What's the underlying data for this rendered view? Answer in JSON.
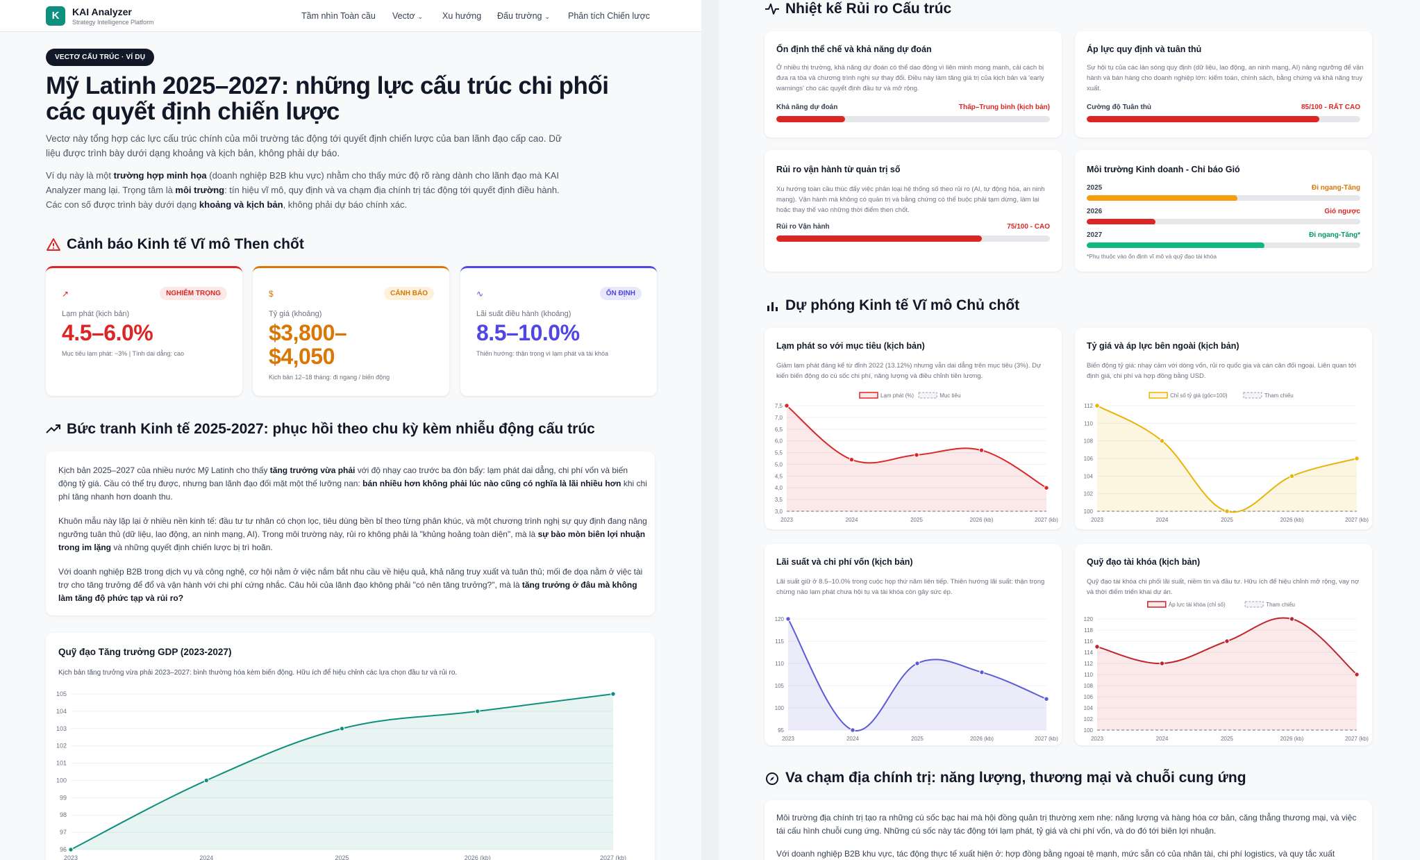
{
  "left": {
    "nav": {
      "logo_letter": "K",
      "brand": "KAI Analyzer",
      "tagline": "Strategy Intelligence Platform",
      "items": [
        {
          "label": "Tầm nhìn Toàn cầu",
          "has_dropdown": false
        },
        {
          "label": "Vectơ",
          "has_dropdown": true
        },
        {
          "label": "Xu hướng",
          "has_dropdown": false
        },
        {
          "label": "Đấu trường",
          "has_dropdown": true
        },
        {
          "label": "Phân tích Chiến lược",
          "has_dropdown": false
        }
      ]
    },
    "pill": "VECTƠ CẤU TRÚC · VÍ DỤ",
    "title": "Mỹ Latinh 2025–2027: những lực cấu trúc chi phối các quyết định chiến lược",
    "lead": "Vectơ này tổng hợp các lực cấu trúc chính của môi trường tác động tới quyết định chiến lược của ban lãnh đạo cấp cao. Dữ liệu được trình bày dưới dạng khoảng và kịch bản, không phải dự báo.",
    "lead2": {
      "p1": "Ví dụ này là một ",
      "b1": "trường hợp minh họa",
      "p2": " (doanh nghiệp B2B khu vực) nhằm cho thấy mức độ rõ ràng dành cho lãnh đạo mà KAI Analyzer mang lại. Trọng tâm là ",
      "b2": "môi trường",
      "p3": ": tín hiệu vĩ mô, quy định và va chạm địa chính trị tác động tới quyết định điều hành. Các con số được trình bày dưới dạng ",
      "b3": "khoảng và kịch bản",
      "p4": ", không phải dự báo chính xác."
    },
    "alerts_title": "Cảnh báo Kinh tế Vĩ mô Then chốt",
    "kpis": [
      {
        "icon": "trend-up-icon",
        "badge": "NGHIÊM TRỌNG",
        "label": "Lạm phát (kịch bản)",
        "value": "4.5–6.0%",
        "note": "Mục tiêu lạm phát: ~3% | Tính dai dẳng: cao",
        "color": "#dc2626",
        "badge_bg": "#fde8e8"
      },
      {
        "icon": "dollar-icon",
        "badge": "CẢNH BÁO",
        "label": "Tỷ giá (khoảng)",
        "value": "$3,800–$4,050",
        "note": "Kịch bản 12–18 tháng: đi ngang / biến động",
        "color": "#d97706",
        "badge_bg": "#fdf1dc"
      },
      {
        "icon": "pulse-icon",
        "badge": "ỔN ĐỊNH",
        "label": "Lãi suất điều hành (khoảng)",
        "value": "8.5–10.0%",
        "note": "Thiên hướng: thận trọng vì lạm phát và tài khóa",
        "color": "#4f46e5",
        "badge_bg": "#e8e7fb"
      }
    ],
    "overview": {
      "title": "Bức tranh Kinh tế 2025-2027: phục hồi theo chu kỳ kèm nhiễu động cấu trúc",
      "p1": [
        {
          "t": "Kịch bản 2025–2027 của nhiều nước Mỹ Latinh cho thấy ",
          "b": false
        },
        {
          "t": "tăng trưởng vừa phải",
          "b": true
        },
        {
          "t": " với độ nhạy cao trước ba đòn bẩy: lạm phát dai dẳng, chi phí vốn và biến động tỷ giá. Cầu có thể trụ được, nhưng ban lãnh đạo đối mặt một thế lưỡng nan: ",
          "b": false
        },
        {
          "t": "bán nhiều hơn không phải lúc nào cũng có nghĩa là lãi nhiều hơn",
          "b": true
        },
        {
          "t": " khi chi phí tăng nhanh hơn doanh thu.",
          "b": false
        }
      ],
      "p2": [
        {
          "t": "Khuôn mẫu này lặp lại ở nhiều nền kinh tế: đầu tư tư nhân có chọn lọc, tiêu dùng bền bỉ theo từng phân khúc, và một chương trình nghị sự quy định đang nâng ngưỡng tuân thủ (dữ liệu, lao động, an ninh mạng, AI). Trong môi trường này, rủi ro không phải là \"khủng hoảng toàn diện\", mà là ",
          "b": false
        },
        {
          "t": "sự bào mòn biên lợi nhuận trong im lặng",
          "b": true
        },
        {
          "t": " và những quyết định chiến lược bị trì hoãn.",
          "b": false
        }
      ],
      "p3": [
        {
          "t": "Với doanh nghiệp B2B trong dịch vụ và công nghệ, cơ hội nằm ở việc nắm bắt nhu cầu về hiệu quả, khả năng truy xuất và tuân thủ; mối đe dọa nằm ở việc tài trợ cho tăng trưởng để đổ và vận hành với chi phí cứng nhắc. Câu hỏi của lãnh đạo không phải \"có nên tăng trưởng?\", mà là ",
          "b": false
        },
        {
          "t": "tăng trưởng ở đâu mà không làm tăng độ phức tạp và rủi ro?",
          "b": true
        }
      ]
    },
    "gdp_chart": {
      "title": "Quỹ đạo Tăng trưởng GDP (2023-2027)",
      "subtitle": "Kịch bản tăng trưởng vừa phải 2023–2027: bình thường hóa kèm biến động. Hữu ích để hiệu chỉnh các lựa chọn đầu tư và rủi ro.",
      "color": "#0f8f7e"
    }
  },
  "right": {
    "risk_title": "Nhiệt kế Rủi ro Cấu trúc",
    "risk_cards": [
      {
        "title": "Ổn định thể chế và khả năng dự đoán",
        "desc": "Ở nhiều thị trường, khả năng dự đoán có thể dao động vì liên minh mong manh, cải cách bị đưa ra tòa và chương trình nghị sự thay đổi. Điều này làm tăng giá trị của kịch bản và 'early warnings' cho các quyết định đầu tư và mở rộng.",
        "meter_label": "Khả năng dự đoán",
        "meter_value": "Thấp–Trung bình (kịch bản)",
        "level": 0.25,
        "color": "#dc2626"
      },
      {
        "title": "Áp lực quy định và tuân thủ",
        "desc": "Sự hội tụ của các làn sóng quy định (dữ liệu, lao động, an ninh mạng, AI) nâng ngưỡng để vận hành và bán hàng cho doanh nghiệp lớn: kiểm toán, chính sách, bằng chứng và khả năng truy xuất.",
        "meter_label": "Cường độ Tuân thủ",
        "meter_value": "85/100 - RẤT CAO",
        "level": 0.85,
        "color": "#dc2626"
      },
      {
        "title": "Rủi ro vận hành từ quản trị số",
        "desc": "Xu hướng toàn cầu thúc đẩy việc phân loại hệ thống số theo rủi ro (AI, tự động hóa, an ninh mạng). Vận hành mà không có quản trị và bằng chứng có thể buộc phải tạm dừng, làm lại hoặc thay thế vào những thời điểm then chốt.",
        "meter_label": "Rủi ro Vận hành",
        "meter_value": "75/100 - CAO",
        "level": 0.75,
        "color": "#dc2626"
      },
      {
        "title": "Môi trường Kinh doanh - Chỉ báo Gió",
        "years": [
          {
            "year": "2025",
            "value": "Đi ngang-Tăng",
            "level": 0.55,
            "color": "#f59e0b",
            "text_color": "#d97706"
          },
          {
            "year": "2026",
            "value": "Gió ngược",
            "level": 0.25,
            "color": "#dc2626",
            "text_color": "#dc2626"
          },
          {
            "year": "2027",
            "value": "Đi ngang-Tăng*",
            "level": 0.65,
            "color": "#10b981",
            "text_color": "#059669"
          }
        ],
        "footnote": "*Phụ thuộc vào ổn định vĩ mô và quỹ đạo tài khóa"
      }
    ],
    "proj_title": "Dự phóng Kinh tế Vĩ mô Chủ chốt",
    "charts": [
      {
        "title": "Lạm phát so với mục tiêu (kịch bản)",
        "subtitle": "Giảm lạm phát đáng kể từ đỉnh 2022 (13.12%) nhưng vẫn dai dẳng trên mục tiêu (3%). Dự kiến biến động do cú sốc chi phí, năng lượng và điều chỉnh tiền lương.",
        "legend_main": "Lạm phát (%)",
        "legend_ref": "Mục tiêu"
      },
      {
        "title": "Tỷ giá và áp lực bên ngoài (kịch bản)",
        "subtitle": "Biến động tỷ giá: nhạy cảm với dòng vốn, rủi ro quốc gia và cán cân đối ngoại. Liên quan tới định giá, chi phí và hợp đồng bằng USD.",
        "legend_main": "Chỉ số tỷ giá (gốc=100)",
        "legend_ref": "Tham chiếu"
      },
      {
        "title": "Lãi suất và chi phí vốn (kịch bản)",
        "subtitle": "Lãi suất giữ ở 8.5–10.0% trong cuộc họp thứ năm liên tiếp. Thiên hướng lãi suất: thận trọng chừng nào lạm phát chưa hội tụ và tài khóa còn gây sức ép.",
        "legend_main": "",
        "legend_ref": ""
      },
      {
        "title": "Quỹ đạo tài khóa (kịch bản)",
        "subtitle": "Quỹ đạo tài khóa chi phối lãi suất, niềm tin và đầu tư. Hữu ích để hiệu chỉnh mở rộng, vay nợ và thời điểm triển khai dự án.",
        "legend_main": "Áp lực tài khóa (chỉ số)",
        "legend_ref": "Tham chiếu"
      }
    ],
    "geo_title": "Va chạm địa chính trị: năng lượng, thương mại và chuỗi cung ứng",
    "geo_p1": "Môi trường địa chính trị tạo ra những cú sốc bạc hai mà hội đồng quản trị thường xem nhẹ: năng lượng và hàng hóa cơ bản, căng thẳng thương mại, và việc tái cấu hình chuỗi cung ứng. Những cú sốc này tác động tới lạm phát, tỷ giá và chi phí vốn, và do đó tới biên lợi nhuận.",
    "geo_p2": "Với doanh nghiệp B2B khu vực, tác động thực tế xuất hiện ở: hợp đồng bằng ngoại tệ mạnh, mức sẵn có của nhân tài, chi phí logistics, và quy tắc xuất"
  },
  "chart_data": [
    {
      "type": "area",
      "title": "Quỹ đạo Tăng trưởng GDP (2023-2027)",
      "x": [
        "2023",
        "2024",
        "2025",
        "2026 (kb)",
        "2027 (kb)"
      ],
      "values": [
        96,
        100,
        103,
        104,
        105
      ],
      "ylim": [
        96,
        105
      ],
      "yticks": [
        96,
        97,
        98,
        99,
        100,
        101,
        102,
        103,
        104,
        105
      ]
    },
    {
      "type": "area",
      "title": "Lạm phát so với mục tiêu (kịch bản)",
      "x": [
        "2023",
        "2024",
        "2025",
        "2026 (kb)",
        "2027 (kb)"
      ],
      "series": [
        {
          "name": "Lạm phát (%)",
          "values": [
            7.5,
            5.2,
            5.4,
            5.6,
            4.0
          ]
        },
        {
          "name": "Mục tiêu",
          "values": [
            3,
            3,
            3,
            3,
            3
          ]
        }
      ],
      "ylim": [
        3.0,
        7.5
      ],
      "yticks": [
        3.0,
        3.5,
        4.0,
        4.5,
        5.0,
        5.5,
        6.0,
        6.5,
        7.0,
        7.5
      ]
    },
    {
      "type": "area",
      "title": "Tỷ giá và áp lực bên ngoài (kịch bản)",
      "x": [
        "2023",
        "2024",
        "2025",
        "2026 (kb)",
        "2027 (kb)"
      ],
      "series": [
        {
          "name": "Chỉ số tỷ giá (gốc=100)",
          "values": [
            112,
            108,
            100,
            104,
            106
          ]
        },
        {
          "name": "Tham chiếu",
          "values": [
            100,
            100,
            100,
            100,
            100
          ]
        }
      ],
      "ylim": [
        100,
        112
      ],
      "yticks": [
        100,
        102,
        104,
        106,
        108,
        110,
        112
      ]
    },
    {
      "type": "area",
      "title": "Lãi suất và chi phí vốn (kịch bản)",
      "x": [
        "2023",
        "2024",
        "2025",
        "2026 (kb)",
        "2027 (kb)"
      ],
      "values": [
        120,
        95,
        110,
        108,
        102
      ],
      "ylim": [
        95,
        120
      ],
      "yticks": [
        95,
        100,
        105,
        110,
        115,
        120
      ]
    },
    {
      "type": "area",
      "title": "Quỹ đạo tài khóa (kịch bản)",
      "x": [
        "2023",
        "2024",
        "2025",
        "2026 (kb)",
        "2027 (kb)"
      ],
      "series": [
        {
          "name": "Áp lực tài khóa (chỉ số)",
          "values": [
            115,
            112,
            116,
            120,
            110
          ]
        },
        {
          "name": "Tham chiếu",
          "values": [
            100,
            100,
            100,
            100,
            100
          ]
        }
      ],
      "ylim": [
        100,
        120
      ],
      "yticks": [
        100,
        102,
        104,
        106,
        108,
        110,
        112,
        114,
        116,
        118,
        120
      ]
    }
  ]
}
